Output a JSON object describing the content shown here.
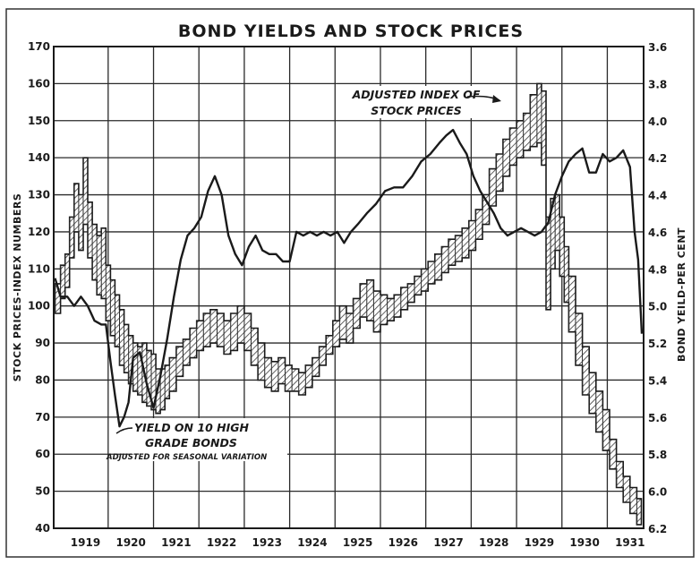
{
  "chart_data": {
    "type": "line",
    "title": "BOND YIELDS AND STOCK PRICES",
    "ylabel_left": "STOCK PRICES-INDEX NUMBERS",
    "ylabel_right": "BOND YEILD-PER CENT",
    "ylim_left": [
      40,
      170
    ],
    "ylim_right": [
      6.2,
      3.6
    ],
    "right_axis_inverted": true,
    "grid": true,
    "xlim": [
      1918.8,
      1931.8
    ],
    "x_tick_labels": [
      "1919",
      "1920",
      "1921",
      "1922",
      "1923",
      "1924",
      "1925",
      "1926",
      "1927",
      "1928",
      "1929",
      "1930",
      "1931"
    ],
    "left_tick_labels": [
      "170",
      "160",
      "150",
      "140",
      "130",
      "120",
      "110",
      "100",
      "90",
      "80",
      "70",
      "60",
      "50",
      "40"
    ],
    "right_tick_labels": [
      "3.6",
      "3.8",
      "4.0",
      "4.2",
      "4.4",
      "4.6",
      "4.8",
      "5.0",
      "5.2",
      "5.4",
      "5.6",
      "5.8",
      "6.0",
      "6.2"
    ],
    "annotations": [
      {
        "lines": [
          "ADJUSTED INDEX OF",
          "STOCK PRICES"
        ],
        "points_to": "Adjusted Index of Stock Prices"
      },
      {
        "lines": [
          "YIELD ON 10 HIGH",
          "GRADE BONDS"
        ],
        "points_to": "Yield on 10 High Grade Bonds"
      },
      {
        "lines": [
          "ADJUSTED FOR SEASONAL VARIATION"
        ],
        "points_to": "Yield on 10 High Grade Bonds"
      }
    ],
    "series": [
      {
        "name": "Adjusted Index of Stock Prices",
        "style": "hatched high-low band",
        "axis": "left",
        "x": [
          1918.83,
          1918.95,
          1919.05,
          1919.15,
          1919.25,
          1919.35,
          1919.45,
          1919.55,
          1919.65,
          1919.75,
          1919.85,
          1919.95,
          1920.05,
          1920.15,
          1920.25,
          1920.35,
          1920.45,
          1920.55,
          1920.65,
          1920.75,
          1920.85,
          1920.95,
          1921.05,
          1921.15,
          1921.25,
          1921.35,
          1921.5,
          1921.65,
          1921.8,
          1921.95,
          1922.1,
          1922.25,
          1922.4,
          1922.55,
          1922.7,
          1922.85,
          1923.0,
          1923.15,
          1923.3,
          1923.45,
          1923.6,
          1923.75,
          1923.9,
          1924.05,
          1924.2,
          1924.35,
          1924.5,
          1924.65,
          1924.8,
          1924.95,
          1925.1,
          1925.25,
          1925.4,
          1925.55,
          1925.7,
          1925.85,
          1926.0,
          1926.15,
          1926.3,
          1926.45,
          1926.6,
          1926.75,
          1926.9,
          1927.05,
          1927.2,
          1927.35,
          1927.5,
          1927.65,
          1927.8,
          1927.95,
          1928.1,
          1928.25,
          1928.4,
          1928.55,
          1928.7,
          1928.85,
          1929.0,
          1929.15,
          1929.3,
          1929.45,
          1929.55,
          1929.65,
          1929.75,
          1929.85,
          1929.95,
          1930.05,
          1930.15,
          1930.3,
          1930.45,
          1930.6,
          1930.75,
          1930.9,
          1931.05,
          1931.2,
          1931.35,
          1931.5,
          1931.65
        ],
        "high": [
          106,
          111,
          114,
          124,
          133,
          130,
          140,
          128,
          122,
          119,
          121,
          111,
          107,
          103,
          99,
          95,
          92,
          90,
          89,
          90,
          88,
          87,
          83,
          83,
          84,
          86,
          89,
          91,
          94,
          96,
          98,
          99,
          98,
          96,
          98,
          100,
          98,
          94,
          90,
          86,
          85,
          86,
          84,
          83,
          82,
          84,
          86,
          89,
          92,
          96,
          100,
          98,
          102,
          106,
          107,
          104,
          103,
          102,
          103,
          105,
          106,
          108,
          110,
          112,
          114,
          116,
          118,
          119,
          121,
          123,
          126,
          130,
          137,
          141,
          145,
          148,
          150,
          152,
          157,
          160,
          158,
          124,
          129,
          130,
          124,
          116,
          108,
          98,
          89,
          82,
          77,
          72,
          64,
          58,
          54,
          51,
          48
        ],
        "low": [
          98,
          102,
          105,
          113,
          120,
          115,
          122,
          113,
          107,
          103,
          102,
          96,
          92,
          89,
          84,
          82,
          79,
          77,
          76,
          74,
          73,
          72,
          71,
          72,
          75,
          77,
          81,
          84,
          86,
          88,
          89,
          90,
          89,
          87,
          88,
          90,
          88,
          84,
          80,
          78,
          77,
          79,
          77,
          77,
          76,
          78,
          81,
          84,
          87,
          89,
          91,
          90,
          94,
          97,
          96,
          93,
          95,
          96,
          97,
          99,
          101,
          103,
          104,
          106,
          107,
          109,
          111,
          112,
          113,
          115,
          118,
          122,
          127,
          131,
          135,
          138,
          140,
          142,
          143,
          144,
          138,
          99,
          110,
          115,
          108,
          101,
          93,
          84,
          76,
          71,
          66,
          61,
          56,
          51,
          47,
          44,
          41
        ]
      },
      {
        "name": "Yield on 10 High Grade Bonds",
        "style": "solid line",
        "axis": "right",
        "x": [
          1918.83,
          1918.95,
          1919.1,
          1919.25,
          1919.4,
          1919.55,
          1919.7,
          1919.85,
          1919.95,
          1920.05,
          1920.15,
          1920.25,
          1920.35,
          1920.45,
          1920.55,
          1920.7,
          1920.85,
          1921.0,
          1921.15,
          1921.3,
          1921.45,
          1921.6,
          1921.75,
          1921.9,
          1922.05,
          1922.2,
          1922.35,
          1922.5,
          1922.65,
          1922.8,
          1922.95,
          1923.1,
          1923.25,
          1923.4,
          1923.55,
          1923.7,
          1923.85,
          1924.0,
          1924.15,
          1924.3,
          1924.45,
          1924.6,
          1924.75,
          1924.9,
          1925.05,
          1925.2,
          1925.35,
          1925.5,
          1925.7,
          1925.9,
          1926.1,
          1926.3,
          1926.5,
          1926.7,
          1926.9,
          1927.1,
          1927.3,
          1927.45,
          1927.6,
          1927.75,
          1927.9,
          1928.05,
          1928.2,
          1928.35,
          1928.5,
          1928.65,
          1928.8,
          1928.95,
          1929.1,
          1929.25,
          1929.4,
          1929.55,
          1929.7,
          1929.85,
          1930.0,
          1930.15,
          1930.3,
          1930.45,
          1930.6,
          1930.75,
          1930.9,
          1931.05,
          1931.2,
          1931.35,
          1931.5,
          1931.6,
          1931.68,
          1931.76
        ],
        "values": [
          4.85,
          4.95,
          4.95,
          5.0,
          4.95,
          5.0,
          5.08,
          5.1,
          5.1,
          5.3,
          5.48,
          5.65,
          5.6,
          5.52,
          5.28,
          5.25,
          5.42,
          5.55,
          5.38,
          5.18,
          4.95,
          4.75,
          4.62,
          4.58,
          4.52,
          4.38,
          4.3,
          4.4,
          4.62,
          4.72,
          4.78,
          4.68,
          4.62,
          4.7,
          4.72,
          4.72,
          4.76,
          4.76,
          4.6,
          4.62,
          4.6,
          4.62,
          4.6,
          4.62,
          4.6,
          4.66,
          4.6,
          4.56,
          4.5,
          4.45,
          4.38,
          4.36,
          4.36,
          4.3,
          4.22,
          4.18,
          4.12,
          4.08,
          4.05,
          4.12,
          4.18,
          4.3,
          4.38,
          4.44,
          4.5,
          4.58,
          4.62,
          4.6,
          4.58,
          4.6,
          4.62,
          4.6,
          4.55,
          4.4,
          4.3,
          4.22,
          4.18,
          4.15,
          4.28,
          4.28,
          4.18,
          4.22,
          4.2,
          4.16,
          4.25,
          4.6,
          4.75,
          5.15
        ]
      }
    ]
  },
  "colors": {
    "ink": "#1a1a1a",
    "band_fill": "#9a9a9a",
    "paper": "#ffffff"
  }
}
